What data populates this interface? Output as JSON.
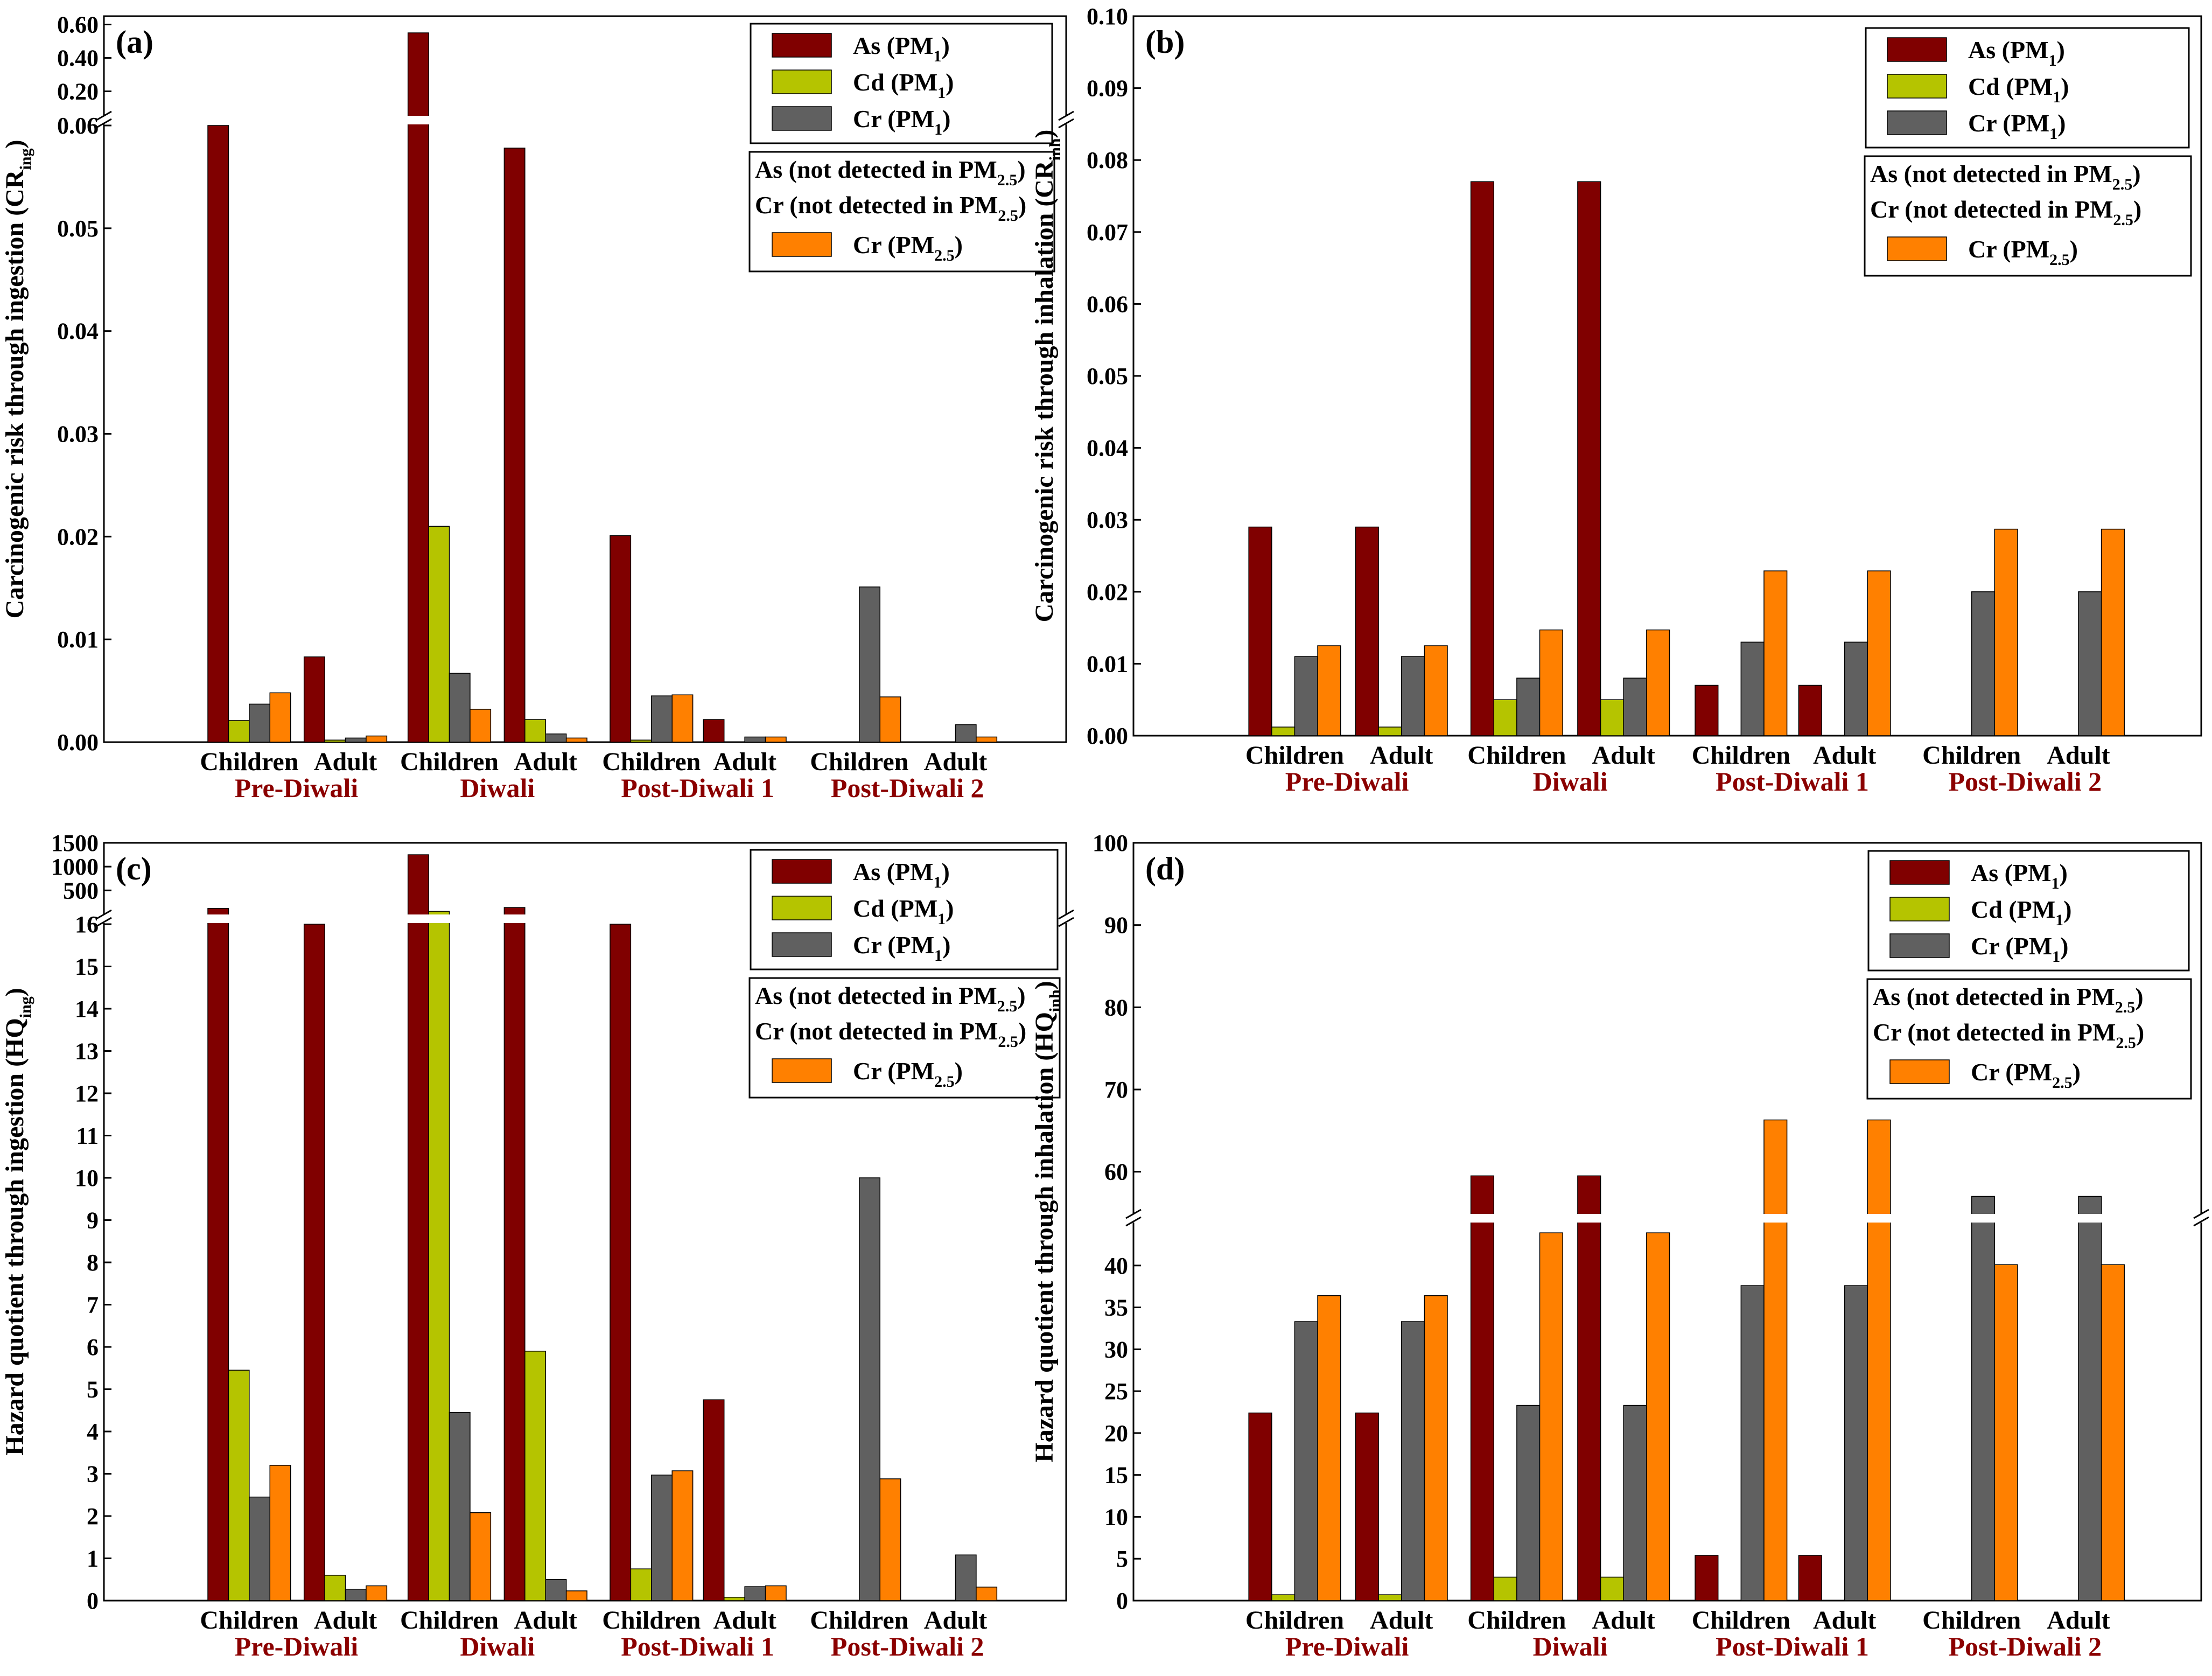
{
  "colors": {
    "As": "#800000",
    "Cd": "#B5C400",
    "Cr": "#606060",
    "CrPM25": "#FF8000",
    "group_label": "#8B0000"
  },
  "chart_data": [
    {
      "type": "bar",
      "label": "(a)",
      "ylabel_main": "Carcinogenic risk through ingestion (CR",
      "ylabel_sub": "ing",
      "ylabel_close": ")",
      "break": {
        "lower": [
          0,
          0.06
        ],
        "lower_ticks": [
          "0.00",
          "0.01",
          "0.02",
          "0.03",
          "0.04",
          "0.05",
          "0.06"
        ],
        "upper": [
          0.06,
          0.65
        ],
        "upper_ticks": [
          "0.20",
          "0.40",
          "0.60"
        ]
      },
      "categories": [
        "Children",
        "Adult",
        "Children",
        "Adult",
        "Children",
        "Adult",
        "Children",
        "Adult"
      ],
      "groups": [
        "Pre-Diwali",
        "Diwali",
        "Post-Diwali 1",
        "Post-Diwali 2"
      ],
      "series": [
        {
          "name": "As (PM1)",
          "color_key": "As",
          "values": [
            0.06,
            0.0083,
            0.55,
            0.0578,
            0.0201,
            0.0022,
            0,
            0
          ]
        },
        {
          "name": "Cd (PM1)",
          "color_key": "Cd",
          "values": [
            0.0021,
            0.0002,
            0.021,
            0.0022,
            0.0002,
            0,
            0,
            0
          ]
        },
        {
          "name": "Cr (PM1)",
          "color_key": "Cr",
          "values": [
            0.0037,
            0.0004,
            0.0067,
            0.0008,
            0.0045,
            0.0005,
            0.0151,
            0.0017
          ]
        },
        {
          "name": "Cr (PM2.5)",
          "color_key": "CrPM25",
          "values": [
            0.0048,
            0.0006,
            0.0032,
            0.0004,
            0.0046,
            0.0005,
            0.0044,
            0.0005
          ]
        }
      ],
      "legend": {
        "top": [
          {
            "text": "As (PM",
            "sub": "1",
            "close": ")",
            "color_key": "As"
          },
          {
            "text": "Cd (PM",
            "sub": "1",
            "close": ")",
            "color_key": "Cd"
          },
          {
            "text": "Cr (PM",
            "sub": "1",
            "close": ")",
            "color_key": "Cr"
          }
        ],
        "bottom_text": [
          {
            "text": "As (not detected in PM",
            "sub": "2.5",
            "close": ")"
          },
          {
            "text": "Cr (not detected in PM",
            "sub": "2.5",
            "close": ")"
          }
        ],
        "bottom_entry": {
          "text": "Cr (PM",
          "sub": "2.5",
          "close": ")",
          "color_key": "CrPM25"
        }
      }
    },
    {
      "type": "bar",
      "label": "(b)",
      "ylabel_main": "Carcinogenic risk through inhalation (CR",
      "ylabel_sub": "inh",
      "ylabel_close": ")",
      "ylim": [
        0,
        0.1
      ],
      "yticks": [
        "0.00",
        "0.01",
        "0.02",
        "0.03",
        "0.04",
        "0.05",
        "0.06",
        "0.07",
        "0.08",
        "0.09",
        "0.10"
      ],
      "categories": [
        "Children",
        "Adult",
        "Children",
        "Adult",
        "Children",
        "Adult",
        "Children",
        "Adult"
      ],
      "groups": [
        "Pre-Diwali",
        "Diwali",
        "Post-Diwali 1",
        "Post-Diwali 2"
      ],
      "series": [
        {
          "name": "As (PM1)",
          "color_key": "As",
          "values": [
            0.029,
            0.029,
            0.077,
            0.077,
            0.007,
            0.007,
            0,
            0
          ]
        },
        {
          "name": "Cd (PM1)",
          "color_key": "Cd",
          "values": [
            0.0012,
            0.0012,
            0.005,
            0.005,
            0,
            0,
            0,
            0
          ]
        },
        {
          "name": "Cr (PM1)",
          "color_key": "Cr",
          "values": [
            0.011,
            0.011,
            0.008,
            0.008,
            0.013,
            0.013,
            0.02,
            0.02
          ]
        },
        {
          "name": "Cr (PM2.5)",
          "color_key": "CrPM25",
          "values": [
            0.0125,
            0.0125,
            0.0147,
            0.0147,
            0.0229,
            0.0229,
            0.0287,
            0.0287
          ]
        }
      ],
      "legend": {
        "top": [
          {
            "text": "As (PM",
            "sub": "1",
            "close": ")",
            "color_key": "As"
          },
          {
            "text": "Cd (PM",
            "sub": "1",
            "close": ")",
            "color_key": "Cd"
          },
          {
            "text": "Cr (PM",
            "sub": "1",
            "close": ")",
            "color_key": "Cr"
          }
        ],
        "bottom_text": [
          {
            "text": "As (not detected in PM",
            "sub": "2.5",
            "close": ")"
          },
          {
            "text": "Cr (not detected in PM",
            "sub": "2.5",
            "close": ")"
          }
        ],
        "bottom_entry": {
          "text": "Cr (PM",
          "sub": "2.5",
          "close": ")",
          "color_key": "CrPM25"
        }
      }
    },
    {
      "type": "bar",
      "label": "(c)",
      "ylabel_main": "Hazard quotient through ingestion (HQ",
      "ylabel_sub": "ing",
      "ylabel_close": ")",
      "break": {
        "lower": [
          0,
          16
        ],
        "lower_ticks": [
          "0",
          "1",
          "2",
          "3",
          "4",
          "5",
          "6",
          "7",
          "8",
          "9",
          "10",
          "11",
          "12",
          "13",
          "14",
          "15",
          "16"
        ],
        "upper": [
          16,
          1500
        ],
        "upper_ticks": [
          "500",
          "1000",
          "1500"
        ]
      },
      "categories": [
        "Children",
        "Adult",
        "Children",
        "Adult",
        "Children",
        "Adult",
        "Children",
        "Adult"
      ],
      "groups": [
        "Pre-Diwali",
        "Diwali",
        "Post-Diwali 1",
        "Post-Diwali 2"
      ],
      "series": [
        {
          "name": "As (PM1)",
          "color_key": "As",
          "values": [
            120,
            16,
            1250,
            140,
            16,
            4.75,
            0,
            0
          ]
        },
        {
          "name": "Cd (PM1)",
          "color_key": "Cd",
          "values": [
            5.45,
            0.6,
            60,
            5.9,
            0.75,
            0.08,
            0,
            0
          ]
        },
        {
          "name": "Cr (PM1)",
          "color_key": "Cr",
          "values": [
            2.45,
            0.27,
            4.45,
            0.5,
            2.97,
            0.33,
            10.0,
            1.08
          ]
        },
        {
          "name": "Cr (PM2.5)",
          "color_key": "CrPM25",
          "values": [
            3.2,
            0.35,
            2.08,
            0.23,
            3.07,
            0.35,
            2.88,
            0.32
          ]
        }
      ],
      "legend": {
        "top": [
          {
            "text": "As (PM",
            "sub": "1",
            "close": ")",
            "color_key": "As"
          },
          {
            "text": "Cd (PM",
            "sub": "1",
            "close": ")",
            "color_key": "Cd"
          },
          {
            "text": "Cr (PM",
            "sub": "1",
            "close": ")",
            "color_key": "Cr"
          }
        ],
        "bottom_text": [
          {
            "text": "As (not detected in PM",
            "sub": "2.5",
            "close": ")"
          },
          {
            "text": "Cr (not detected in PM",
            "sub": "2.5",
            "close": ")"
          }
        ],
        "bottom_entry": {
          "text": "Cr (PM",
          "sub": "2.5",
          "close": ")",
          "color_key": "CrPM25"
        }
      }
    },
    {
      "type": "bar",
      "label": "(d)",
      "ylabel_main": "Hazard quotient through inhalation (HQ",
      "ylabel_sub": "inh",
      "ylabel_close": ")",
      "break": {
        "lower": [
          0,
          45
        ],
        "lower_ticks": [
          "0",
          "5",
          "10",
          "15",
          "20",
          "25",
          "30",
          "35",
          "40"
        ],
        "upper": [
          55,
          100
        ],
        "upper_ticks": [
          "60",
          "70",
          "80",
          "90",
          "100"
        ]
      },
      "categories": [
        "Children",
        "Adult",
        "Children",
        "Adult",
        "Children",
        "Adult",
        "Children",
        "Adult"
      ],
      "groups": [
        "Pre-Diwali",
        "Diwali",
        "Post-Diwali 1",
        "Post-Diwali 2"
      ],
      "series": [
        {
          "name": "As (PM1)",
          "color_key": "As",
          "values": [
            22.4,
            22.4,
            59.5,
            59.5,
            5.4,
            5.4,
            0,
            0
          ]
        },
        {
          "name": "Cd (PM1)",
          "color_key": "Cd",
          "values": [
            0.7,
            0.7,
            2.8,
            2.8,
            0,
            0,
            0,
            0
          ]
        },
        {
          "name": "Cr (PM1)",
          "color_key": "Cr",
          "values": [
            33.3,
            33.3,
            23.3,
            23.3,
            37.6,
            37.6,
            57.0,
            57.0
          ]
        },
        {
          "name": "Cr (PM2.5)",
          "color_key": "CrPM25",
          "values": [
            36.4,
            36.4,
            43.9,
            43.9,
            66.3,
            66.3,
            40.1,
            40.1
          ]
        }
      ],
      "legend": {
        "top": [
          {
            "text": "As (PM",
            "sub": "1",
            "close": ")",
            "color_key": "As"
          },
          {
            "text": "Cd (PM",
            "sub": "1",
            "close": ")",
            "color_key": "Cd"
          },
          {
            "text": "Cr (PM",
            "sub": "1",
            "close": ")",
            "color_key": "Cr"
          }
        ],
        "bottom_text": [
          {
            "text": "As (not detected in PM",
            "sub": "2.5",
            "close": ")"
          },
          {
            "text": "Cr (not detected in PM",
            "sub": "2.5",
            "close": ")"
          }
        ],
        "bottom_entry": {
          "text": "Cr (PM",
          "sub": "2.5",
          "close": ")",
          "color_key": "CrPM25"
        }
      }
    }
  ]
}
